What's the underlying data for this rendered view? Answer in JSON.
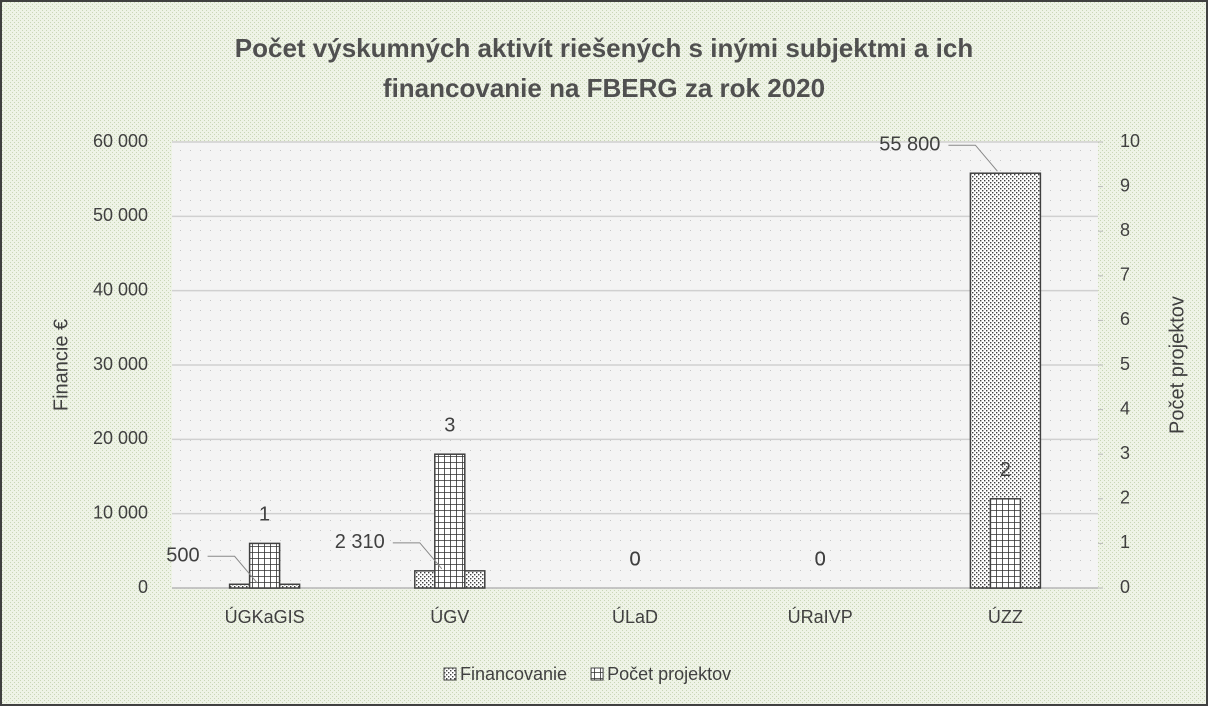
{
  "chart_data": {
    "type": "bar",
    "title": "Počet výskumných aktivít riešených s inými subjektmi a ich financovanie na FBERG za rok 2020",
    "categories": [
      "ÚGKaGIS",
      "ÚGV",
      "ÚLaD",
      "ÚRaIVP",
      "ÚZZ"
    ],
    "series": [
      {
        "name": "Financovanie",
        "color": "#404040",
        "values": [
          500,
          2310,
          0,
          0,
          55800
        ],
        "value_labels": [
          "500",
          "2 310",
          "0",
          "0",
          "55 800"
        ]
      },
      {
        "name": "Počet projektov",
        "color": "#404040",
        "axis": "y2",
        "values": [
          1,
          3,
          0,
          0,
          2
        ]
      }
    ],
    "ylabel": "Financie €",
    "y2label": "Počet projektov",
    "ylim": [
      0,
      60000
    ],
    "yticks": [
      {
        "value": 0,
        "label": "0"
      },
      {
        "value": 10000,
        "label": "10 000"
      },
      {
        "value": 20000,
        "label": "20 000"
      },
      {
        "value": 30000,
        "label": "30 000"
      },
      {
        "value": 40000,
        "label": "40 000"
      },
      {
        "value": 50000,
        "label": "50 000"
      },
      {
        "value": 60000,
        "label": "60 000"
      }
    ],
    "y2lim": [
      0,
      10
    ],
    "y2ticks": [
      0,
      1,
      2,
      3,
      4,
      5,
      6,
      7,
      8,
      9,
      10
    ],
    "grid": true,
    "legend": "bottom"
  }
}
